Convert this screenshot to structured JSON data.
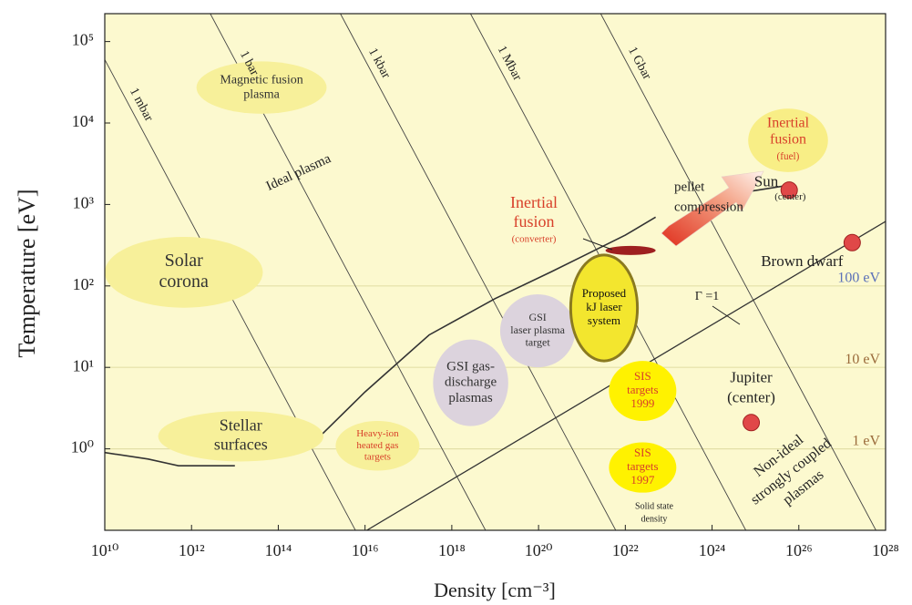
{
  "chart_data": {
    "type": "scatter",
    "x_label": "Density [cm⁻³]",
    "y_label": "Temperature [eV]",
    "xscale": "log",
    "yscale": "log",
    "xlim": [
      10000000000.0,
      1e+28
    ],
    "ylim": [
      0.1,
      220000
    ],
    "xticks": [
      {
        "value": 10000000000.0,
        "label": "10¹⁰"
      },
      {
        "value": 1000000000000.0,
        "label": "10¹²"
      },
      {
        "value": 100000000000000.0,
        "label": "10¹⁴"
      },
      {
        "value": 1e+16,
        "label": "10¹⁶"
      },
      {
        "value": 1e+18,
        "label": "10¹⁸"
      },
      {
        "value": 1e+20,
        "label": "10²⁰"
      },
      {
        "value": 1e+22,
        "label": "10²²"
      },
      {
        "value": 1e+24,
        "label": "10²⁴"
      },
      {
        "value": 1e+26,
        "label": "10²⁶"
      },
      {
        "value": 1e+28,
        "label": "10²⁸"
      }
    ],
    "yticks": [
      {
        "value": 1,
        "label": "10⁰"
      },
      {
        "value": 10,
        "label": "10¹"
      },
      {
        "value": 100,
        "label": "10²"
      },
      {
        "value": 1000,
        "label": "10³"
      },
      {
        "value": 10000,
        "label": "10⁴"
      },
      {
        "value": 100000,
        "label": "10⁵"
      }
    ],
    "background": "#fcf9cf",
    "levels": [
      {
        "value": 100,
        "label": "100 eV",
        "color": "#5a70b8"
      },
      {
        "value": 10,
        "label": "10 eV",
        "color": "#9a6a3a"
      },
      {
        "value": 1,
        "label": "1 eV",
        "color": "#9a6a3a"
      }
    ],
    "isobars": [
      {
        "name": "1 mbar",
        "x": [
          10000000000.0,
          6000000000000000.0
        ],
        "values": [
          60000,
          0.1
        ]
      },
      {
        "name": "1 bar",
        "x": [
          2700000000000.0,
          6e+18
        ],
        "values": [
          220000,
          0.1
        ]
      },
      {
        "name": "1 kbar",
        "x": [
          2700000000000000.0,
          6e+21
        ],
        "values": [
          220000,
          0.1
        ]
      },
      {
        "name": "1 Mbar",
        "x": [
          2.7e+18,
          6e+24
        ],
        "values": [
          220000,
          0.1
        ]
      },
      {
        "name": "1 Gbar",
        "x": [
          2.7e+21,
          6e+27
        ],
        "values": [
          220000,
          0.1
        ]
      }
    ],
    "gamma_line": {
      "name": "Γ =1",
      "x": [
        1.1e+16,
        1e+28
      ],
      "values": [
        0.1,
        620
      ]
    },
    "boundary": {
      "x": [
        10000000000.0,
        100000000000.0,
        500000000000.0,
        10000000000000.0,
        100000000000000.0,
        1000000000000000.0,
        1e+16,
        3e+17,
        1e+19,
        2e+20,
        1e+22,
        5e+22,
        1e+24,
        5e+24,
        5e+25
      ],
      "values": [
        0.9,
        0.75,
        0.62,
        0.62,
        null,
        1.5,
        5,
        25,
        70,
        150,
        420,
        700,
        null,
        1400,
        1700
      ]
    },
    "regions": [
      {
        "label": [
          "Magnetic fusion",
          "plasma"
        ],
        "x": [
          1300000000000.0,
          1300000000000000.0
        ],
        "y": [
          13000,
          57000
        ],
        "color": "#f7f09a",
        "text_color": "#333333"
      },
      {
        "label": [
          "Solar",
          "corona"
        ],
        "x": [
          10000000000.0,
          44000000000000.0
        ],
        "y": [
          54,
          400
        ],
        "color": "#f7f09a",
        "text_color": "#333333"
      },
      {
        "label": [
          "Stellar",
          "surfaces"
        ],
        "x": [
          170000000000.0,
          1100000000000000.0
        ],
        "y": [
          0.7,
          2.9
        ],
        "color": "#f7f09a",
        "text_color": "#333333"
      },
      {
        "label": [
          "Heavy-ion",
          "heated gas",
          "targets"
        ],
        "x": [
          2100000000000000.0,
          1.8e+17
        ],
        "y": [
          0.54,
          2.2
        ],
        "color": "#f7f09a",
        "text_color": "#d8402a"
      },
      {
        "label": [
          "GSI gas-",
          "discharge",
          "plasmas"
        ],
        "x": [
          3.7e+17,
          2e+19
        ],
        "y": [
          1.9,
          22
        ],
        "color": "#dcd3dd",
        "text_color": "#333333"
      },
      {
        "label": [
          "GSI",
          "laser plasma",
          "target"
        ],
        "x": [
          1.3e+19,
          7e+20
        ],
        "y": [
          10,
          79
        ],
        "color": "#dcd3dd",
        "text_color": "#333333"
      },
      {
        "label": [
          "Proposed",
          "kJ  laser",
          "system"
        ],
        "x": [
          5.5e+20,
          1.9e+22
        ],
        "y": [
          12,
          240
        ],
        "color": "#f3e62e",
        "text_color": "#111111"
      },
      {
        "label": [
          "SIS",
          "targets",
          "1999"
        ],
        "x": [
          4.2e+21,
          1.5e+23
        ],
        "y": [
          2.2,
          12
        ],
        "color": "#fff200",
        "text_color": "#d8402a"
      },
      {
        "label": [
          "SIS",
          "targets",
          "1997"
        ],
        "x": [
          4.2e+21,
          1.5e+23
        ],
        "y": [
          0.29,
          1.2
        ],
        "color": "#fff200",
        "text_color": "#d8402a"
      },
      {
        "label": [
          "Inertial",
          "fusion",
          "(fuel)"
        ],
        "x": [
          6.8e+24,
          4.7e+26
        ],
        "y": [
          2500,
          15000
        ],
        "color": "#f8ee86",
        "text_color": "#d8402a"
      },
      {
        "x": [
          3.5e+21,
          5e+22
        ],
        "y": [
          240,
          310
        ],
        "color": "#9e2020"
      }
    ],
    "points": [
      {
        "label": [
          "Sun",
          "(center)"
        ],
        "x": 6e+25,
        "y": 1500,
        "color": "#e04848"
      },
      {
        "label": [
          "Brown dwarf"
        ],
        "x": 1.7e+27,
        "y": 340,
        "color": "#e04848"
      },
      {
        "label": [
          "Jupiter",
          "(center)"
        ],
        "x": 8e+24,
        "y": 2.1,
        "color": "#e04848"
      }
    ],
    "annotations": {
      "ideal_plasma": "Ideal plasma",
      "non_ideal": [
        "Non-ideal",
        "strongly coupled",
        "plasmas"
      ],
      "solid_state": [
        "Solid state",
        "density"
      ],
      "pellet": [
        "pellet",
        "compression"
      ],
      "converter": [
        "Inertial",
        "fusion",
        "(converter)"
      ]
    }
  }
}
